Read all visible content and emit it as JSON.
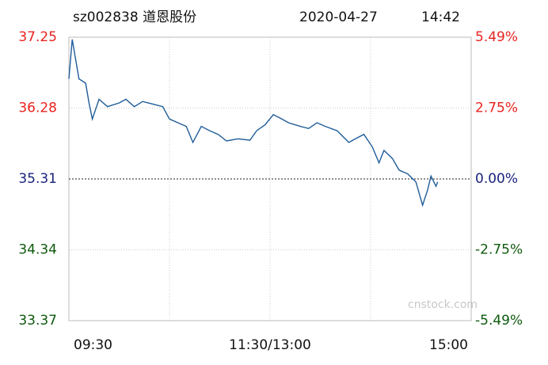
{
  "chart_data": {
    "type": "line",
    "symbol": "sz002838 道恩股份",
    "date": "2020-04-27",
    "time": "14:42",
    "watermark": "cnstock.com",
    "x": [
      0,
      2,
      6,
      10,
      12,
      14,
      18,
      23,
      30,
      34,
      39,
      44,
      51,
      56,
      60,
      65,
      70,
      74,
      79,
      84,
      89,
      94,
      101,
      108,
      112,
      117,
      122,
      127,
      131,
      138,
      143,
      148,
      153,
      160,
      167,
      171,
      176,
      181,
      185,
      188,
      193,
      197,
      202,
      207,
      211,
      214,
      216,
      219,
      220
    ],
    "series": [
      {
        "color": "#1f5c99",
        "values": [
          36.68,
          37.22,
          36.68,
          36.62,
          36.35,
          36.13,
          36.4,
          36.3,
          36.35,
          36.4,
          36.3,
          36.37,
          36.33,
          36.3,
          36.13,
          36.08,
          36.03,
          35.81,
          36.03,
          35.97,
          35.92,
          35.83,
          35.86,
          35.84,
          35.97,
          36.05,
          36.19,
          36.13,
          36.08,
          36.03,
          36.0,
          36.08,
          36.03,
          35.97,
          35.81,
          35.86,
          35.92,
          35.75,
          35.53,
          35.7,
          35.59,
          35.43,
          35.38,
          35.27,
          34.95,
          35.16,
          35.35,
          35.21,
          35.27
        ]
      }
    ],
    "xlim": [
      0,
      240
    ],
    "xticks": [
      {
        "value": 0,
        "label": "09:30"
      },
      {
        "value": 60,
        "label": null
      },
      {
        "value": 120,
        "label": "11:30/13:00"
      },
      {
        "value": 180,
        "label": null
      },
      {
        "value": 240,
        "label": "15:00"
      }
    ],
    "ylim": [
      33.37,
      37.25
    ],
    "yticks": [
      37.25,
      36.28,
      35.31,
      34.34,
      33.37
    ],
    "y2lim": [
      -5.49,
      5.49
    ],
    "y2ticks": [
      {
        "value": 5.49,
        "label": "5.49%"
      },
      {
        "value": 2.75,
        "label": "2.75%"
      },
      {
        "value": 0,
        "label": "0.00%"
      },
      {
        "value": -2.75,
        "label": "-2.75%"
      },
      {
        "value": -5.49,
        "label": "-5.49%"
      }
    ],
    "up_color": "#e8231f",
    "flat_color": "#1a237e",
    "down_color": "#0e5a0e",
    "grid": true
  }
}
